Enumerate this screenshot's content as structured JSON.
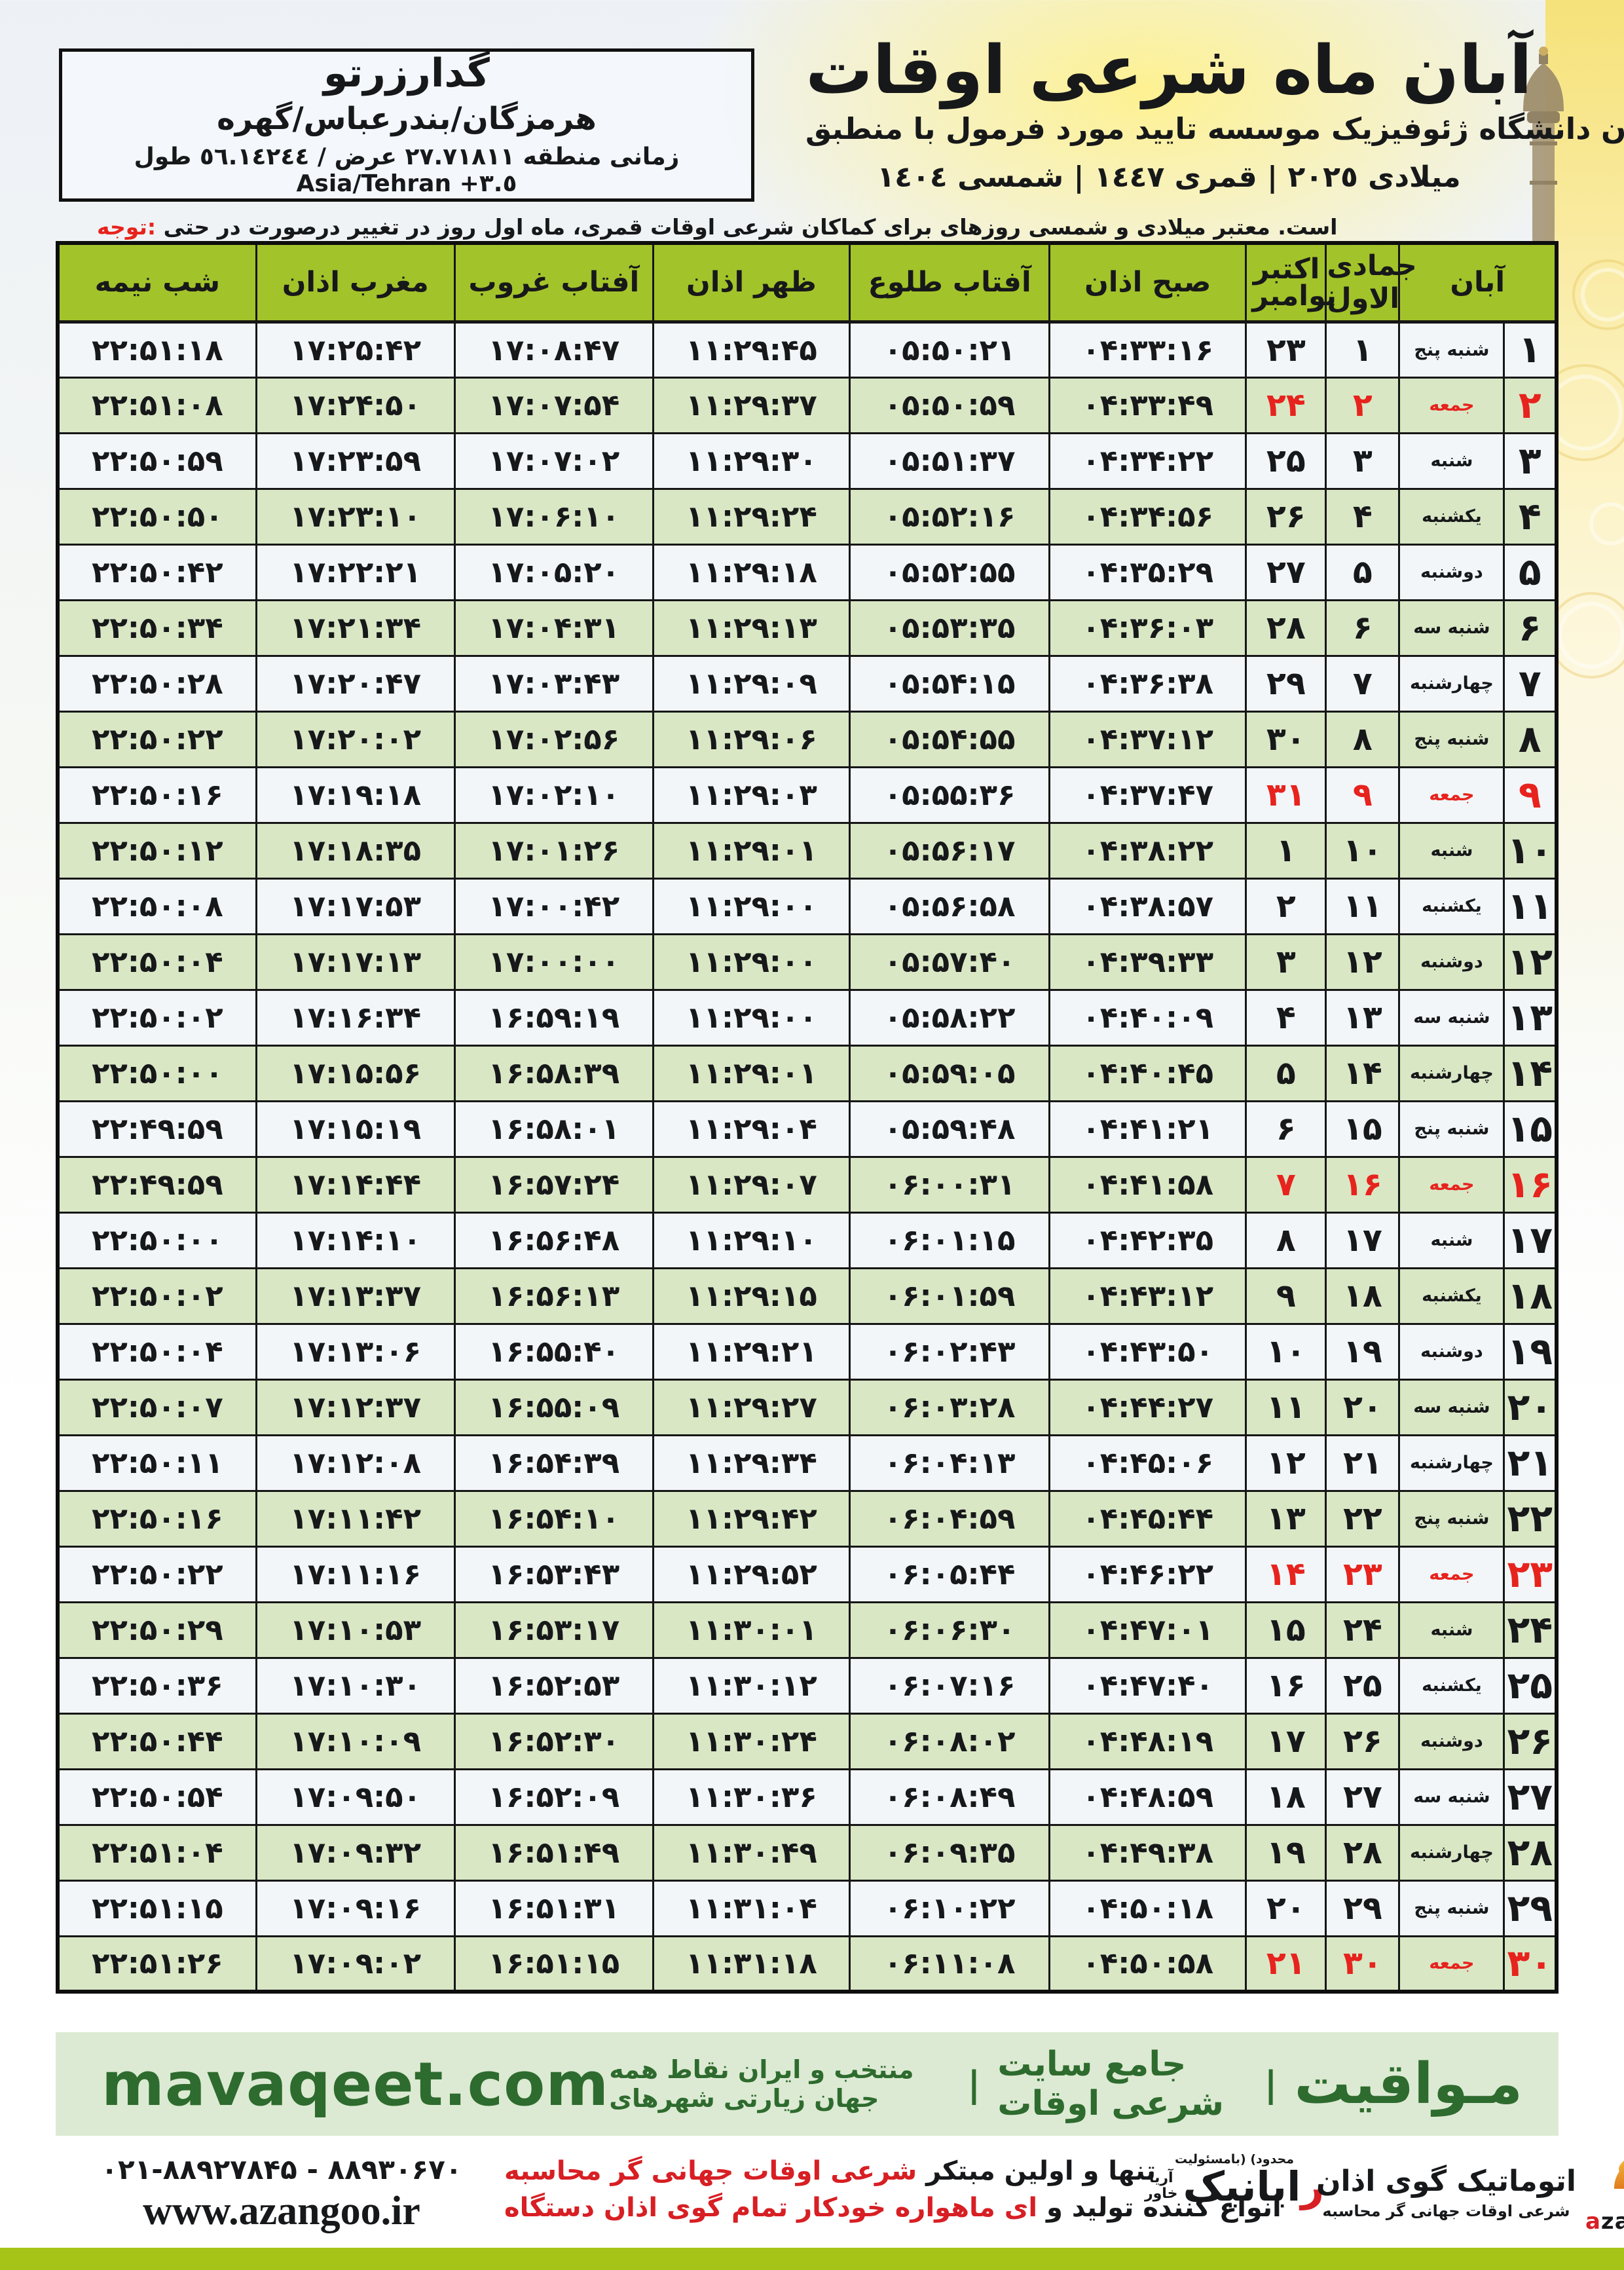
{
  "colors": {
    "header_green": "#a3c32a",
    "row_green": "#d9e7c5",
    "row_light": "#f2f6f9",
    "friday_red": "#e7231d",
    "band_green": "#dcead3",
    "brand_green": "#2e6b2e",
    "bottom_bar_green": "#a6c417",
    "border": "#161616"
  },
  "header": {
    "title": "اوقات شرعی ماه آبان",
    "subtitle": "منطبق با فرمول مورد تایید موسسه ژئوفیزیک دانشگاه تهران",
    "date_line": "١٤٠٤ شمسی | ١٤٤٧ قمری | ٢٠٢٥ میلادی"
  },
  "location_box": {
    "city": "گدارزرتو",
    "region": "گهره/بندرعباس/هرمزگان",
    "coords": "طول ٥٦.١٤٢٤٤ / عرض ٢٧.٧١٨١١ منطقه زمانی Asia/Tehran +٣.٥"
  },
  "notice": {
    "label": "توجه:",
    "text": "حتی در درصورت تغییر در روز اول ماه قمری، اوقات شرعی کماکان برای روزهای شمسی و میلادی معتبر است."
  },
  "table": {
    "headers": {
      "aban": "آبان",
      "lunar": "جمادی الاول",
      "greg_october": "اکتبر",
      "greg_november": "نوامبر",
      "fajr": "اذان صبح",
      "sunrise": "طلوع آفتاب",
      "dhuhr": "اذان ظهر",
      "sunset": "غروب آفتاب",
      "maghrib": "اذان مغرب",
      "midnight": "نیمه شب"
    },
    "rows": [
      {
        "aban": "۱",
        "weekday": "پنج شنبه",
        "lunar": "۱",
        "greg": "۲۳",
        "fajr": "۰۴:۳۳:۱۶",
        "sunrise": "۰۵:۵۰:۲۱",
        "dhuhr": "۱۱:۲۹:۴۵",
        "sunset": "۱۷:۰۸:۴۷",
        "maghrib": "۱۷:۲۵:۴۲",
        "midnight": "۲۲:۵۱:۱۸",
        "friday": false
      },
      {
        "aban": "۲",
        "weekday": "جمعه",
        "lunar": "۲",
        "greg": "۲۴",
        "fajr": "۰۴:۳۳:۴۹",
        "sunrise": "۰۵:۵۰:۵۹",
        "dhuhr": "۱۱:۲۹:۳۷",
        "sunset": "۱۷:۰۷:۵۴",
        "maghrib": "۱۷:۲۴:۵۰",
        "midnight": "۲۲:۵۱:۰۸",
        "friday": true
      },
      {
        "aban": "۳",
        "weekday": "شنبه",
        "lunar": "۳",
        "greg": "۲۵",
        "fajr": "۰۴:۳۴:۲۲",
        "sunrise": "۰۵:۵۱:۳۷",
        "dhuhr": "۱۱:۲۹:۳۰",
        "sunset": "۱۷:۰۷:۰۲",
        "maghrib": "۱۷:۲۳:۵۹",
        "midnight": "۲۲:۵۰:۵۹",
        "friday": false
      },
      {
        "aban": "۴",
        "weekday": "یکشنبه",
        "lunar": "۴",
        "greg": "۲۶",
        "fajr": "۰۴:۳۴:۵۶",
        "sunrise": "۰۵:۵۲:۱۶",
        "dhuhr": "۱۱:۲۹:۲۴",
        "sunset": "۱۷:۰۶:۱۰",
        "maghrib": "۱۷:۲۳:۱۰",
        "midnight": "۲۲:۵۰:۵۰",
        "friday": false
      },
      {
        "aban": "۵",
        "weekday": "دوشنبه",
        "lunar": "۵",
        "greg": "۲۷",
        "fajr": "۰۴:۳۵:۲۹",
        "sunrise": "۰۵:۵۲:۵۵",
        "dhuhr": "۱۱:۲۹:۱۸",
        "sunset": "۱۷:۰۵:۲۰",
        "maghrib": "۱۷:۲۲:۲۱",
        "midnight": "۲۲:۵۰:۴۲",
        "friday": false
      },
      {
        "aban": "۶",
        "weekday": "سه شنبه",
        "lunar": "۶",
        "greg": "۲۸",
        "fajr": "۰۴:۳۶:۰۳",
        "sunrise": "۰۵:۵۳:۳۵",
        "dhuhr": "۱۱:۲۹:۱۳",
        "sunset": "۱۷:۰۴:۳۱",
        "maghrib": "۱۷:۲۱:۳۴",
        "midnight": "۲۲:۵۰:۳۴",
        "friday": false
      },
      {
        "aban": "۷",
        "weekday": "چهارشنبه",
        "lunar": "۷",
        "greg": "۲۹",
        "fajr": "۰۴:۳۶:۳۸",
        "sunrise": "۰۵:۵۴:۱۵",
        "dhuhr": "۱۱:۲۹:۰۹",
        "sunset": "۱۷:۰۳:۴۳",
        "maghrib": "۱۷:۲۰:۴۷",
        "midnight": "۲۲:۵۰:۲۸",
        "friday": false
      },
      {
        "aban": "۸",
        "weekday": "پنج شنبه",
        "lunar": "۸",
        "greg": "۳۰",
        "fajr": "۰۴:۳۷:۱۲",
        "sunrise": "۰۵:۵۴:۵۵",
        "dhuhr": "۱۱:۲۹:۰۶",
        "sunset": "۱۷:۰۲:۵۶",
        "maghrib": "۱۷:۲۰:۰۲",
        "midnight": "۲۲:۵۰:۲۲",
        "friday": false
      },
      {
        "aban": "۹",
        "weekday": "جمعه",
        "lunar": "۹",
        "greg": "۳۱",
        "fajr": "۰۴:۳۷:۴۷",
        "sunrise": "۰۵:۵۵:۳۶",
        "dhuhr": "۱۱:۲۹:۰۳",
        "sunset": "۱۷:۰۲:۱۰",
        "maghrib": "۱۷:۱۹:۱۸",
        "midnight": "۲۲:۵۰:۱۶",
        "friday": true
      },
      {
        "aban": "۱۰",
        "weekday": "شنبه",
        "lunar": "۱۰",
        "greg": "۱",
        "fajr": "۰۴:۳۸:۲۲",
        "sunrise": "۰۵:۵۶:۱۷",
        "dhuhr": "۱۱:۲۹:۰۱",
        "sunset": "۱۷:۰۱:۲۶",
        "maghrib": "۱۷:۱۸:۳۵",
        "midnight": "۲۲:۵۰:۱۲",
        "friday": false
      },
      {
        "aban": "۱۱",
        "weekday": "یکشنبه",
        "lunar": "۱۱",
        "greg": "۲",
        "fajr": "۰۴:۳۸:۵۷",
        "sunrise": "۰۵:۵۶:۵۸",
        "dhuhr": "۱۱:۲۹:۰۰",
        "sunset": "۱۷:۰۰:۴۲",
        "maghrib": "۱۷:۱۷:۵۳",
        "midnight": "۲۲:۵۰:۰۸",
        "friday": false
      },
      {
        "aban": "۱۲",
        "weekday": "دوشنبه",
        "lunar": "۱۲",
        "greg": "۳",
        "fajr": "۰۴:۳۹:۳۳",
        "sunrise": "۰۵:۵۷:۴۰",
        "dhuhr": "۱۱:۲۹:۰۰",
        "sunset": "۱۷:۰۰:۰۰",
        "maghrib": "۱۷:۱۷:۱۳",
        "midnight": "۲۲:۵۰:۰۴",
        "friday": false
      },
      {
        "aban": "۱۳",
        "weekday": "سه شنبه",
        "lunar": "۱۳",
        "greg": "۴",
        "fajr": "۰۴:۴۰:۰۹",
        "sunrise": "۰۵:۵۸:۲۲",
        "dhuhr": "۱۱:۲۹:۰۰",
        "sunset": "۱۶:۵۹:۱۹",
        "maghrib": "۱۷:۱۶:۳۴",
        "midnight": "۲۲:۵۰:۰۲",
        "friday": false
      },
      {
        "aban": "۱۴",
        "weekday": "چهارشنبه",
        "lunar": "۱۴",
        "greg": "۵",
        "fajr": "۰۴:۴۰:۴۵",
        "sunrise": "۰۵:۵۹:۰۵",
        "dhuhr": "۱۱:۲۹:۰۱",
        "sunset": "۱۶:۵۸:۳۹",
        "maghrib": "۱۷:۱۵:۵۶",
        "midnight": "۲۲:۵۰:۰۰",
        "friday": false
      },
      {
        "aban": "۱۵",
        "weekday": "پنج شنبه",
        "lunar": "۱۵",
        "greg": "۶",
        "fajr": "۰۴:۴۱:۲۱",
        "sunrise": "۰۵:۵۹:۴۸",
        "dhuhr": "۱۱:۲۹:۰۴",
        "sunset": "۱۶:۵۸:۰۱",
        "maghrib": "۱۷:۱۵:۱۹",
        "midnight": "۲۲:۴۹:۵۹",
        "friday": false
      },
      {
        "aban": "۱۶",
        "weekday": "جمعه",
        "lunar": "۱۶",
        "greg": "۷",
        "fajr": "۰۴:۴۱:۵۸",
        "sunrise": "۰۶:۰۰:۳۱",
        "dhuhr": "۱۱:۲۹:۰۷",
        "sunset": "۱۶:۵۷:۲۴",
        "maghrib": "۱۷:۱۴:۴۴",
        "midnight": "۲۲:۴۹:۵۹",
        "friday": true
      },
      {
        "aban": "۱۷",
        "weekday": "شنبه",
        "lunar": "۱۷",
        "greg": "۸",
        "fajr": "۰۴:۴۲:۳۵",
        "sunrise": "۰۶:۰۱:۱۵",
        "dhuhr": "۱۱:۲۹:۱۰",
        "sunset": "۱۶:۵۶:۴۸",
        "maghrib": "۱۷:۱۴:۱۰",
        "midnight": "۲۲:۵۰:۰۰",
        "friday": false
      },
      {
        "aban": "۱۸",
        "weekday": "یکشنبه",
        "lunar": "۱۸",
        "greg": "۹",
        "fajr": "۰۴:۴۳:۱۲",
        "sunrise": "۰۶:۰۱:۵۹",
        "dhuhr": "۱۱:۲۹:۱۵",
        "sunset": "۱۶:۵۶:۱۳",
        "maghrib": "۱۷:۱۳:۳۷",
        "midnight": "۲۲:۵۰:۰۲",
        "friday": false
      },
      {
        "aban": "۱۹",
        "weekday": "دوشنبه",
        "lunar": "۱۹",
        "greg": "۱۰",
        "fajr": "۰۴:۴۳:۵۰",
        "sunrise": "۰۶:۰۲:۴۳",
        "dhuhr": "۱۱:۲۹:۲۱",
        "sunset": "۱۶:۵۵:۴۰",
        "maghrib": "۱۷:۱۳:۰۶",
        "midnight": "۲۲:۵۰:۰۴",
        "friday": false
      },
      {
        "aban": "۲۰",
        "weekday": "سه شنبه",
        "lunar": "۲۰",
        "greg": "۱۱",
        "fajr": "۰۴:۴۴:۲۷",
        "sunrise": "۰۶:۰۳:۲۸",
        "dhuhr": "۱۱:۲۹:۲۷",
        "sunset": "۱۶:۵۵:۰۹",
        "maghrib": "۱۷:۱۲:۳۷",
        "midnight": "۲۲:۵۰:۰۷",
        "friday": false
      },
      {
        "aban": "۲۱",
        "weekday": "چهارشنبه",
        "lunar": "۲۱",
        "greg": "۱۲",
        "fajr": "۰۴:۴۵:۰۶",
        "sunrise": "۰۶:۰۴:۱۳",
        "dhuhr": "۱۱:۲۹:۳۴",
        "sunset": "۱۶:۵۴:۳۹",
        "maghrib": "۱۷:۱۲:۰۸",
        "midnight": "۲۲:۵۰:۱۱",
        "friday": false
      },
      {
        "aban": "۲۲",
        "weekday": "پنج شنبه",
        "lunar": "۲۲",
        "greg": "۱۳",
        "fajr": "۰۴:۴۵:۴۴",
        "sunrise": "۰۶:۰۴:۵۹",
        "dhuhr": "۱۱:۲۹:۴۲",
        "sunset": "۱۶:۵۴:۱۰",
        "maghrib": "۱۷:۱۱:۴۲",
        "midnight": "۲۲:۵۰:۱۶",
        "friday": false
      },
      {
        "aban": "۲۳",
        "weekday": "جمعه",
        "lunar": "۲۳",
        "greg": "۱۴",
        "fajr": "۰۴:۴۶:۲۲",
        "sunrise": "۰۶:۰۵:۴۴",
        "dhuhr": "۱۱:۲۹:۵۲",
        "sunset": "۱۶:۵۳:۴۳",
        "maghrib": "۱۷:۱۱:۱۶",
        "midnight": "۲۲:۵۰:۲۲",
        "friday": true
      },
      {
        "aban": "۲۴",
        "weekday": "شنبه",
        "lunar": "۲۴",
        "greg": "۱۵",
        "fajr": "۰۴:۴۷:۰۱",
        "sunrise": "۰۶:۰۶:۳۰",
        "dhuhr": "۱۱:۳۰:۰۱",
        "sunset": "۱۶:۵۳:۱۷",
        "maghrib": "۱۷:۱۰:۵۳",
        "midnight": "۲۲:۵۰:۲۹",
        "friday": false
      },
      {
        "aban": "۲۵",
        "weekday": "یکشنبه",
        "lunar": "۲۵",
        "greg": "۱۶",
        "fajr": "۰۴:۴۷:۴۰",
        "sunrise": "۰۶:۰۷:۱۶",
        "dhuhr": "۱۱:۳۰:۱۲",
        "sunset": "۱۶:۵۲:۵۳",
        "maghrib": "۱۷:۱۰:۳۰",
        "midnight": "۲۲:۵۰:۳۶",
        "friday": false
      },
      {
        "aban": "۲۶",
        "weekday": "دوشنبه",
        "lunar": "۲۶",
        "greg": "۱۷",
        "fajr": "۰۴:۴۸:۱۹",
        "sunrise": "۰۶:۰۸:۰۲",
        "dhuhr": "۱۱:۳۰:۲۴",
        "sunset": "۱۶:۵۲:۳۰",
        "maghrib": "۱۷:۱۰:۰۹",
        "midnight": "۲۲:۵۰:۴۴",
        "friday": false
      },
      {
        "aban": "۲۷",
        "weekday": "سه شنبه",
        "lunar": "۲۷",
        "greg": "۱۸",
        "fajr": "۰۴:۴۸:۵۹",
        "sunrise": "۰۶:۰۸:۴۹",
        "dhuhr": "۱۱:۳۰:۳۶",
        "sunset": "۱۶:۵۲:۰۹",
        "maghrib": "۱۷:۰۹:۵۰",
        "midnight": "۲۲:۵۰:۵۴",
        "friday": false
      },
      {
        "aban": "۲۸",
        "weekday": "چهارشنبه",
        "lunar": "۲۸",
        "greg": "۱۹",
        "fajr": "۰۴:۴۹:۳۸",
        "sunrise": "۰۶:۰۹:۳۵",
        "dhuhr": "۱۱:۳۰:۴۹",
        "sunset": "۱۶:۵۱:۴۹",
        "maghrib": "۱۷:۰۹:۳۲",
        "midnight": "۲۲:۵۱:۰۴",
        "friday": false
      },
      {
        "aban": "۲۹",
        "weekday": "پنج شنبه",
        "lunar": "۲۹",
        "greg": "۲۰",
        "fajr": "۰۴:۵۰:۱۸",
        "sunrise": "۰۶:۱۰:۲۲",
        "dhuhr": "۱۱:۳۱:۰۴",
        "sunset": "۱۶:۵۱:۳۱",
        "maghrib": "۱۷:۰۹:۱۶",
        "midnight": "۲۲:۵۱:۱۵",
        "friday": false
      },
      {
        "aban": "۳۰",
        "weekday": "جمعه",
        "lunar": "۳۰",
        "greg": "۲۱",
        "fajr": "۰۴:۵۰:۵۸",
        "sunrise": "۰۶:۱۱:۰۸",
        "dhuhr": "۱۱:۳۱:۱۸",
        "sunset": "۱۶:۵۱:۱۵",
        "maghrib": "۱۷:۰۹:۰۲",
        "midnight": "۲۲:۵۱:۲۶",
        "friday": true
      }
    ]
  },
  "mavaqeet_band": {
    "brand": "مـواقیت",
    "separator": "|",
    "tagline1": "سایت جامع اوقات شرعی",
    "tagline2": "همه نقاط ایران و منتخب شهرهای زیارتی جهان",
    "url": "mavaqeet.com"
  },
  "bottom": {
    "phone": "۰۲۱-۸۸۹۲۷۸۴۵ - ۸۸۹۳۰۶۷۰",
    "website": "www.azangoo.ir",
    "ad_line1_black": "مبتکر اولین و تنها",
    "ad_line1_red": "محاسبه گر جهانی اوقات شرعی",
    "ad_line2_black": "و تولید کننده انواع",
    "ad_line2_red": "دستگاه اذان گوی تمام خودکار ماهواره ای",
    "rayanik_small": "(بامسئولیت محدود)",
    "rayanik_name": "رایانیک",
    "rayanik_sub1": "آریا",
    "rayanik_sub2": "خاور",
    "azangoo_title": "اذان گوی اتوماتیک",
    "azangoo_sub": "محاسبه گر جهانی اوقات شرعی",
    "azangoo_latin": "azangoo"
  }
}
